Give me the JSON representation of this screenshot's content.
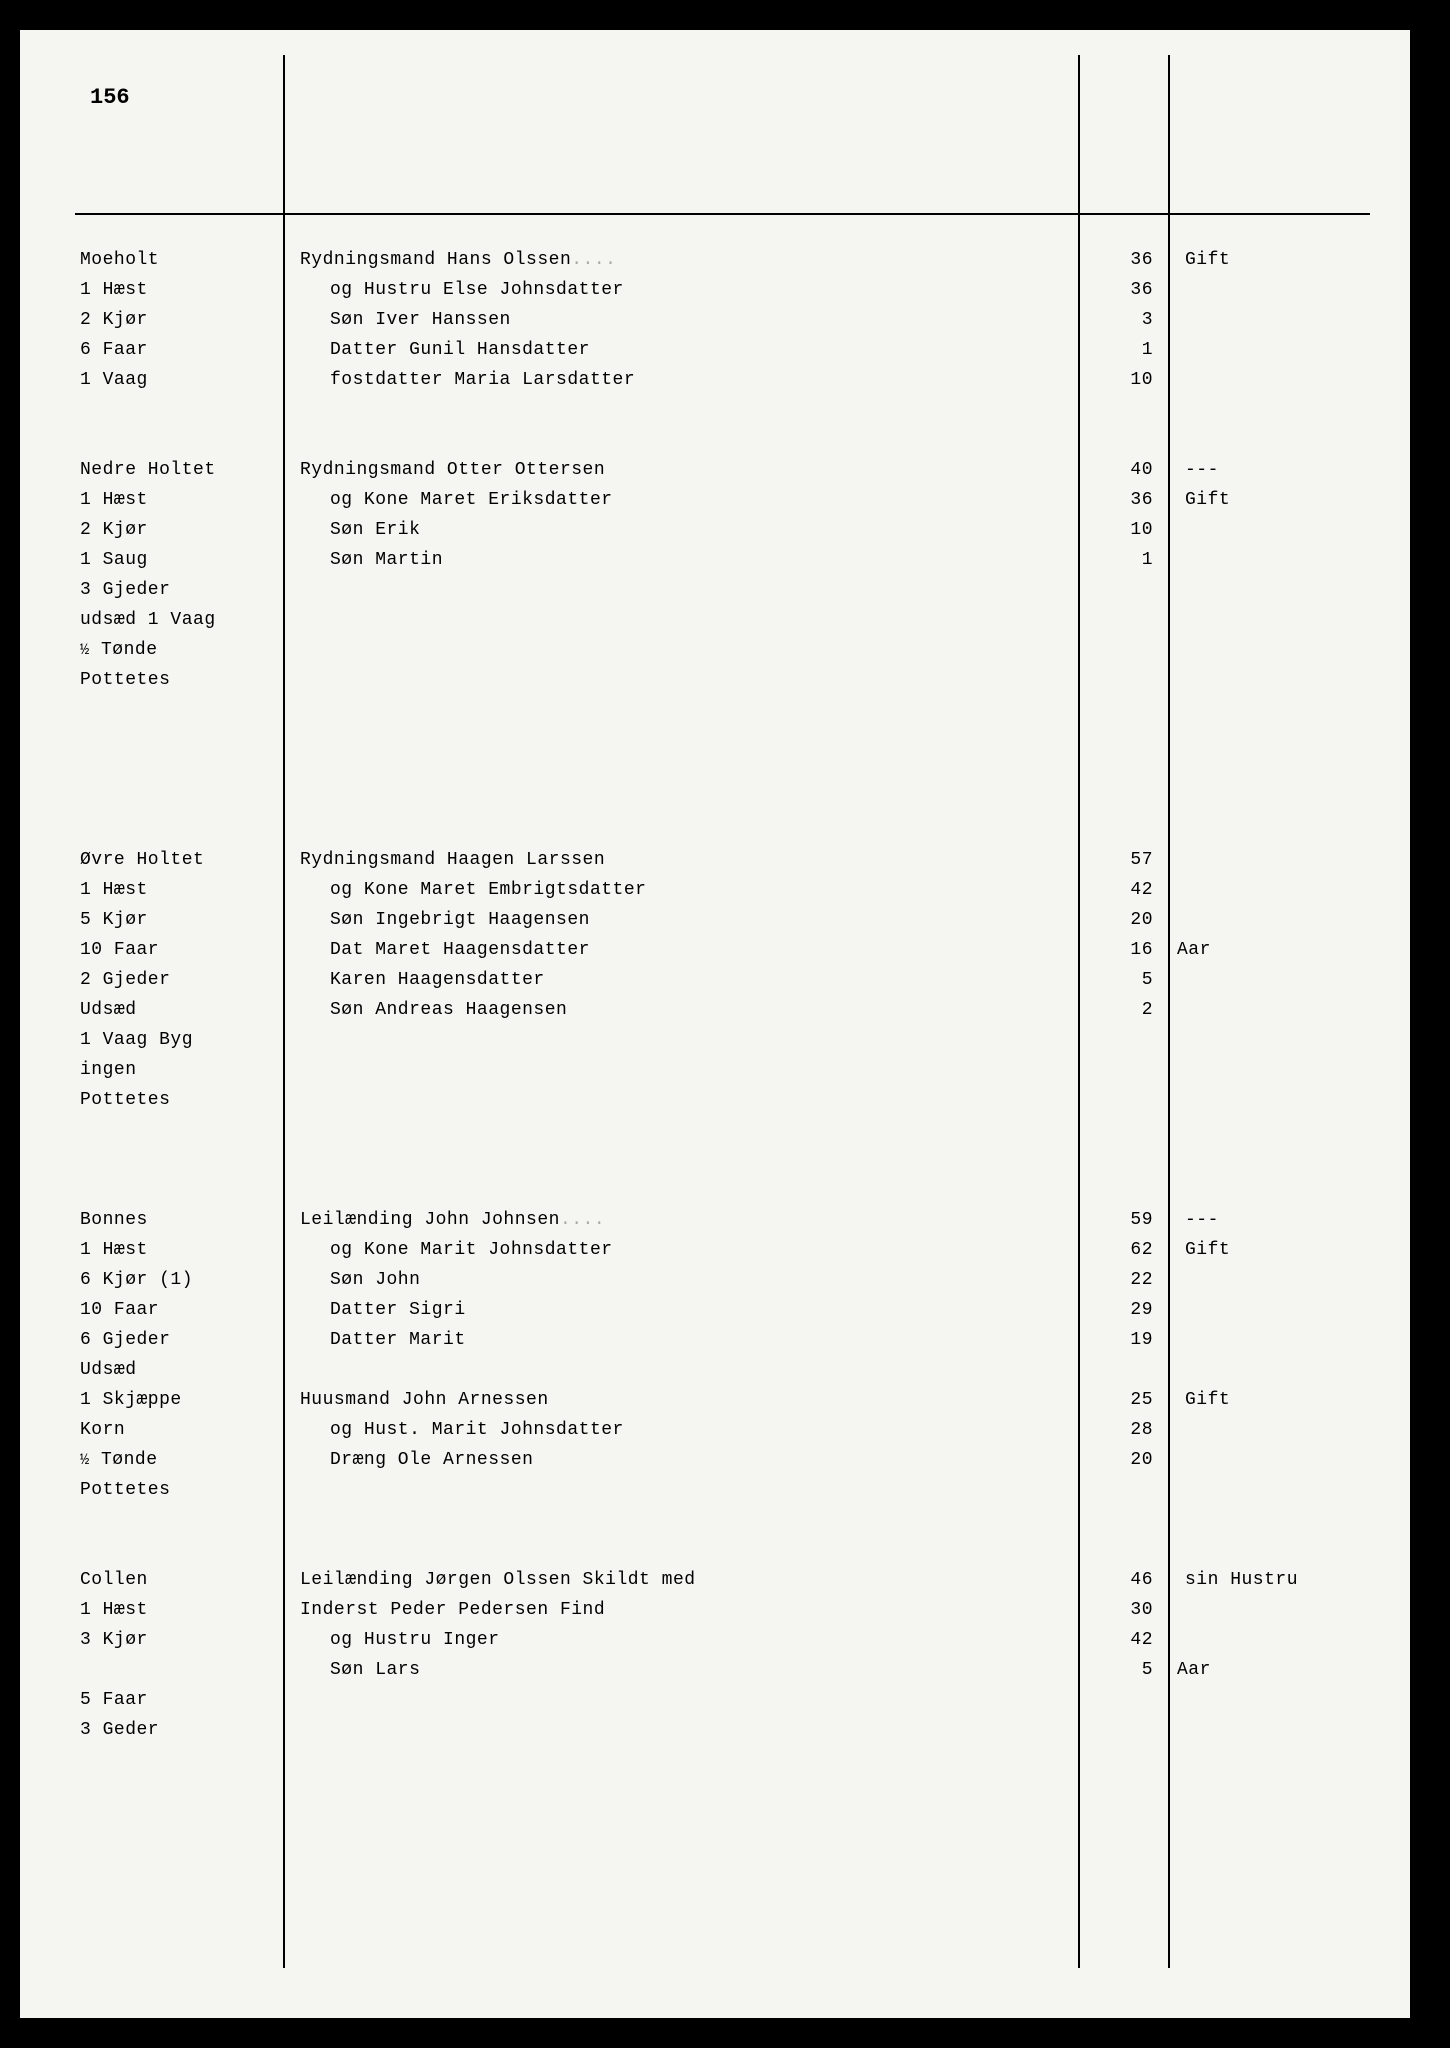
{
  "pageNumber": "156",
  "sections": [
    {
      "farm": {
        "name": "Moeholt",
        "livestock": [
          "1 Hæst",
          "2 Kjør",
          "6 Faar",
          "1 Vaag"
        ]
      },
      "persons": [
        {
          "text": "Rydningsmand Hans Olssen",
          "age": "36",
          "status": "Gift",
          "indent": 0,
          "dots": true
        },
        {
          "text": "og Hustru Else Johnsdatter",
          "age": "36",
          "status": "",
          "indent": 1
        },
        {
          "text": "Søn    Iver Hanssen",
          "age": "3",
          "status": "",
          "indent": 1
        },
        {
          "text": "Datter Gunil Hansdatter",
          "age": "1",
          "status": "",
          "indent": 1
        },
        {
          "text": "fostdatter Maria Larsdatter",
          "age": "10",
          "status": "",
          "indent": 1
        }
      ],
      "trailingGap": 2
    },
    {
      "farm": {
        "name": "Nedre Holtet",
        "livestock": [
          "1 Hæst",
          "2 Kjør",
          "1 Saug",
          "3 Gjeder",
          "udsæd 1 Vaag",
          "½ Tønde",
          "  Pottetes"
        ]
      },
      "persons": [
        {
          "text": "Rydningsmand Otter Ottersen",
          "age": "40",
          "status": "---",
          "indent": 0
        },
        {
          "text": "og Kone Maret Eriksdatter",
          "age": "36",
          "status": "Gift",
          "indent": 1
        },
        {
          "text": "Søn   Erik",
          "age": "10",
          "status": "",
          "indent": 1
        },
        {
          "text": "Søn   Martin",
          "age": "1",
          "status": "",
          "indent": 1
        }
      ],
      "trailingGap": 5
    },
    {
      "farm": {
        "name": "Øvre Holtet",
        "livestock": [
          "1 Hæst",
          "5 Kjør",
          "10 Faar",
          "2 Gjeder",
          "Udsæd",
          "1 Vaag Byg",
          "ingen",
          "Pottetes"
        ]
      },
      "persons": [
        {
          "text": "Rydningsmand Haagen Larssen",
          "age": "57",
          "status": "",
          "indent": 0
        },
        {
          "text": "og Kone Maret Embrigtsdatter",
          "age": "42",
          "status": "",
          "indent": 1
        },
        {
          "text": "Søn    Ingebrigt Haagensen",
          "age": "20",
          "status": "",
          "indent": 1
        },
        {
          "text": "Dat    Maret Haagensdatter",
          "age": "16",
          "status": "Aar",
          "indent": 1,
          "neg": true
        },
        {
          "text": "       Karen Haagensdatter",
          "age": "5",
          "status": "",
          "indent": 1
        },
        {
          "text": "Søn    Andreas Haagensen",
          "age": "2",
          "status": "",
          "indent": 1
        }
      ],
      "trailingGap": 3
    },
    {
      "farm": {
        "name": "Bonnes",
        "livestock": [
          "1 Hæst",
          "6 Kjør (1)",
          "10 Faar",
          "6 Gjeder",
          "Udsæd",
          "1 Skjæppe",
          "  Korn",
          "½ Tønde",
          "  Pottetes"
        ],
        "annotation": true
      },
      "persons": [
        {
          "text": "Leilænding John Johnsen",
          "age": "59",
          "status": "---",
          "indent": 0,
          "dots": true
        },
        {
          "text": "og Kone Marit Johnsdatter",
          "age": "62",
          "status": "Gift",
          "indent": 1
        },
        {
          "text": "Søn    John",
          "age": "22",
          "status": "",
          "indent": 1
        },
        {
          "text": "Datter Sigri",
          "age": "29",
          "status": "",
          "indent": 1
        },
        {
          "text": "Datter Marit",
          "age": "19",
          "status": "",
          "indent": 1
        },
        {
          "text": "",
          "age": "",
          "status": "",
          "indent": 0,
          "blank": true
        },
        {
          "text": "Huusmand John Arnessen",
          "age": "25",
          "status": "Gift",
          "indent": 0
        },
        {
          "text": "og Hust. Marit Johnsdatter",
          "age": "28",
          "status": "",
          "indent": 1
        },
        {
          "text": "Dræng  Ole Arnessen",
          "age": "20",
          "status": "",
          "indent": 1
        }
      ],
      "trailingGap": 2
    },
    {
      "farm": {
        "name": "Collen",
        "livestock": [
          "1 Hæst",
          "3 Kjør",
          "",
          "5 Faar",
          "3 Geder"
        ]
      },
      "persons": [
        {
          "text": "Leilænding Jørgen Olssen Skildt med",
          "age": "46",
          "status": "sin Hustru",
          "indent": 0
        },
        {
          "text": "Inderst Peder Pedersen Find",
          "age": "30",
          "status": "",
          "indent": 0
        },
        {
          "text": " og Hustru Inger",
          "age": "42",
          "status": "",
          "indent": 1
        },
        {
          "text": "Søn    Lars",
          "age": "5",
          "status": "Aar",
          "indent": 1,
          "neg": true
        }
      ],
      "trailingGap": 0
    }
  ]
}
